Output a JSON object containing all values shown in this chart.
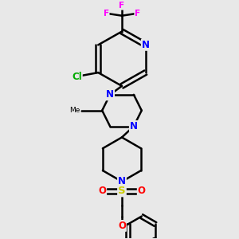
{
  "background_color": "#e8e8e8",
  "line_color": "#000000",
  "bond_width": 1.8,
  "atom_colors": {
    "N": "#0000ff",
    "O": "#ff0000",
    "S": "#cccc00",
    "F": "#ff00ff",
    "Cl": "#00aa00",
    "C": "#000000"
  },
  "font_size": 8.5
}
